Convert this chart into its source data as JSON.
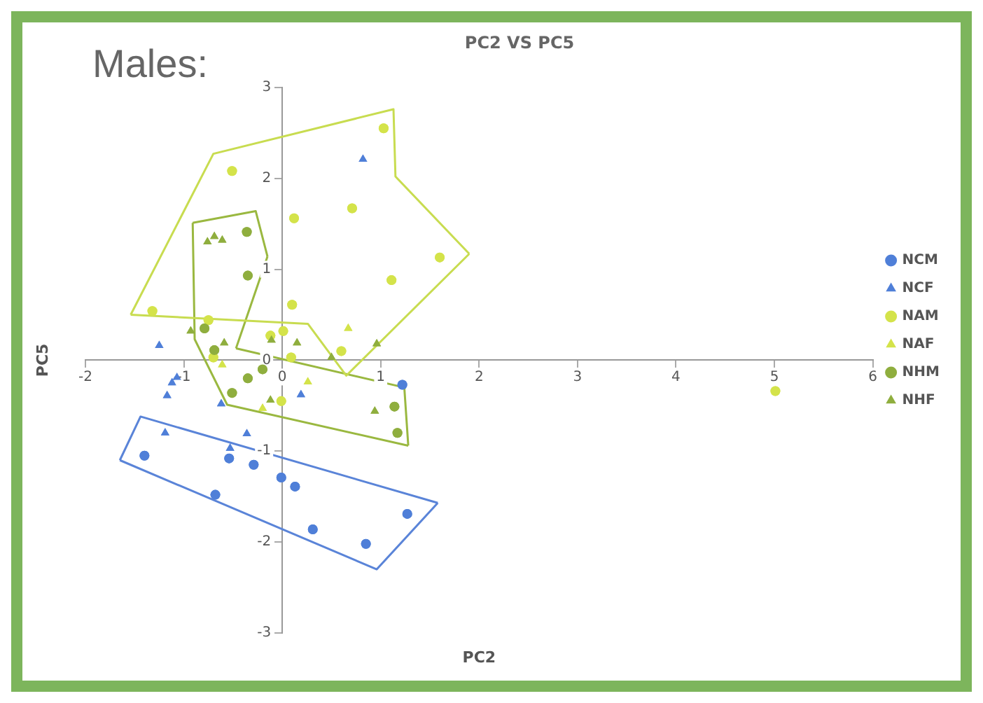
{
  "chart_data": {
    "type": "scatter",
    "title": "PC2 VS PC5",
    "subtitle": "Males:",
    "xlabel": "PC2",
    "ylabel": "PC5",
    "xlim": [
      -2,
      6
    ],
    "ylim": [
      -3,
      3
    ],
    "xticks": [
      -2,
      -1,
      0,
      1,
      2,
      3,
      4,
      5,
      6
    ],
    "yticks": [
      -3,
      -2,
      -1,
      0,
      1,
      2,
      3
    ],
    "grid": false,
    "legend": "right",
    "series": [
      {
        "name": "NCM",
        "color": "#4f7fd8",
        "marker": "circle",
        "x": [
          -1.4,
          -0.54,
          -0.29,
          -0.68,
          -0.01,
          0.13,
          0.31,
          0.85,
          1.27,
          1.22
        ],
        "values": [
          -1.05,
          -1.08,
          -1.15,
          -1.48,
          -1.29,
          -1.39,
          -1.86,
          -2.02,
          -1.69,
          -0.27
        ]
      },
      {
        "name": "NCF",
        "color": "#4f7fd8",
        "marker": "triangle",
        "x": [
          -1.25,
          -1.07,
          -1.12,
          -1.17,
          -0.62,
          0.19,
          -1.19,
          -0.36,
          -0.53,
          0.82
        ],
        "values": [
          0.16,
          -0.19,
          -0.25,
          -0.39,
          -0.48,
          -0.38,
          -0.8,
          -0.81,
          -0.97,
          2.21
        ]
      },
      {
        "name": "NAM",
        "color": "#d4e34a",
        "marker": "circle",
        "x": [
          -0.51,
          0.12,
          0.71,
          1.03,
          1.6,
          1.11,
          0.1,
          -1.32,
          -0.75,
          0.01,
          0.6,
          0.09,
          -0.7,
          -0.12,
          -0.01,
          5.01
        ],
        "values": [
          2.08,
          1.56,
          1.67,
          2.55,
          1.13,
          0.88,
          0.61,
          0.54,
          0.44,
          0.32,
          0.1,
          0.03,
          0.03,
          0.27,
          -0.45,
          -0.34
        ]
      },
      {
        "name": "NAF",
        "color": "#d4e34a",
        "marker": "triangle",
        "x": [
          0.67,
          -0.61,
          0.26,
          -0.2
        ],
        "values": [
          0.35,
          -0.05,
          -0.24,
          -0.53
        ]
      },
      {
        "name": "NHM",
        "color": "#8fae3e",
        "marker": "circle",
        "x": [
          -0.36,
          -0.35,
          -0.79,
          -0.69,
          -0.35,
          -0.2,
          -0.51,
          1.14,
          1.17
        ],
        "values": [
          1.41,
          0.93,
          0.35,
          0.11,
          -0.2,
          -0.1,
          -0.36,
          -0.51,
          -0.8
        ]
      },
      {
        "name": "NHF",
        "color": "#8fae3e",
        "marker": "triangle",
        "x": [
          -0.76,
          -0.69,
          -0.61,
          -0.93,
          -0.59,
          0.15,
          -0.11,
          0.96,
          0.5,
          -0.12,
          0.94
        ],
        "values": [
          1.3,
          1.36,
          1.32,
          0.32,
          0.19,
          0.19,
          0.22,
          0.18,
          0.03,
          -0.44,
          -0.56
        ]
      },
      {
        "type": "line",
        "color": "#c8dc50",
        "marker": "none",
        "x": [
          -1.54,
          -0.7,
          1.13,
          1.15,
          1.9
        ],
        "values": [
          0.5,
          2.27,
          2.76,
          2.02,
          1.17
        ]
      },
      {
        "type": "line",
        "color": "#c8dc50",
        "marker": "none",
        "x": [
          -1.54,
          0.26,
          0.65,
          1.9
        ],
        "values": [
          0.5,
          0.4,
          -0.17,
          1.17
        ]
      },
      {
        "type": "line",
        "color": "#9ab840",
        "marker": "none",
        "x": [
          -0.91,
          -0.27,
          -0.15
        ],
        "values": [
          1.51,
          1.64,
          1.14
        ]
      },
      {
        "type": "line",
        "color": "#9ab840",
        "marker": "none",
        "x": [
          -0.47,
          -0.15
        ],
        "values": [
          0.13,
          1.14
        ]
      },
      {
        "type": "line",
        "color": "#9ab840",
        "marker": "none",
        "x": [
          -0.47,
          1.24,
          1.28
        ],
        "values": [
          0.13,
          -0.3,
          -0.94
        ]
      },
      {
        "type": "line",
        "color": "#9ab840",
        "marker": "none",
        "x": [
          -0.91,
          -0.89,
          -0.56,
          1.28
        ],
        "values": [
          1.51,
          0.23,
          -0.49,
          -0.94
        ]
      },
      {
        "type": "line",
        "color": "#5a84d8",
        "marker": "none",
        "x": [
          -1.65,
          -1.44,
          1.58
        ],
        "values": [
          -1.1,
          -0.62,
          -1.57
        ]
      },
      {
        "type": "line",
        "color": "#5a84d8",
        "marker": "none",
        "x": [
          -1.65,
          0.96,
          1.58
        ],
        "values": [
          -1.1,
          -2.3,
          -1.57
        ]
      }
    ]
  }
}
